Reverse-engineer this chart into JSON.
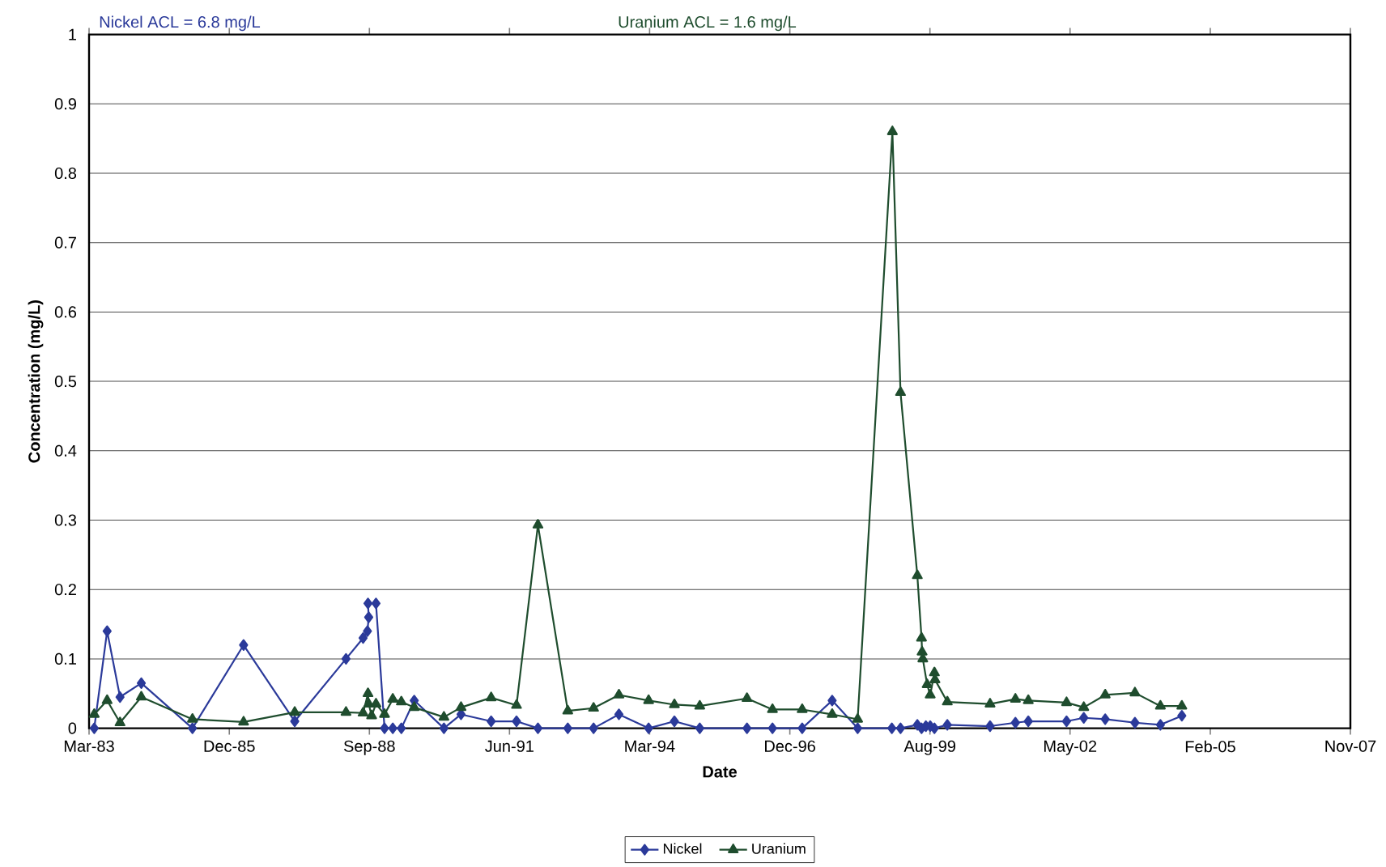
{
  "chart_data": {
    "type": "line",
    "annotations": [
      "Nickel ACL = 6.8 mg/L",
      "Uranium ACL = 1.6 mg/L"
    ],
    "xlabel": "Date",
    "ylabel": "Concentration (mg/L)",
    "xlim": [
      "1983-03-25",
      "2007-11-17"
    ],
    "xticks": [
      {
        "value": "1983-03-25",
        "label": "Mar-83"
      },
      {
        "value": "1985-12-20",
        "label": "Dec-85"
      },
      {
        "value": "1988-09-15",
        "label": "Sep-88"
      },
      {
        "value": "1991-06-12",
        "label": "Jun-91"
      },
      {
        "value": "1994-03-08",
        "label": "Mar-94"
      },
      {
        "value": "1996-12-03",
        "label": "Dec-96"
      },
      {
        "value": "1999-08-30",
        "label": "Aug-99"
      },
      {
        "value": "2002-05-26",
        "label": "May-02"
      },
      {
        "value": "2005-02-20",
        "label": "Feb-05"
      },
      {
        "value": "2007-11-17",
        "label": "Nov-07"
      }
    ],
    "ylim": [
      0,
      1
    ],
    "yticks": [
      0,
      0.1,
      0.2,
      0.3,
      0.4,
      0.5,
      0.6,
      0.7,
      0.8,
      0.9,
      1
    ],
    "grid": "y",
    "legend": "bottom",
    "series": [
      {
        "name": "Nickel",
        "color": "#2b3a9a",
        "marker": "diamond",
        "x": [
          "1983-05-01",
          "1983-08-01",
          "1983-11-01",
          "1984-04-01",
          "1985-04-01",
          "1986-04-01",
          "1987-04-01",
          "1988-04-01",
          "1988-08-01",
          "1988-09-01",
          "1988-09-10",
          "1988-09-05",
          "1988-11-01",
          "1989-01-01",
          "1989-03-01",
          "1989-05-01",
          "1989-08-01",
          "1990-03-01",
          "1990-07-01",
          "1991-02-01",
          "1991-08-01",
          "1992-01-01",
          "1992-08-01",
          "1993-02-01",
          "1993-08-01",
          "1994-03-01",
          "1994-09-01",
          "1995-03-01",
          "1996-02-01",
          "1996-08-01",
          "1997-03-01",
          "1997-10-01",
          "1998-04-01",
          "1998-12-01",
          "1999-02-01",
          "1999-06-01",
          "1999-07-01",
          "1999-08-01",
          "1999-09-01",
          "1999-10-01",
          "2000-01-01",
          "2000-11-01",
          "2001-05-01",
          "2001-08-01",
          "2002-05-01",
          "2002-09-01",
          "2003-02-01",
          "2003-09-01",
          "2004-03-01",
          "2004-08-01"
        ],
        "values": [
          0,
          0.14,
          0.045,
          0.065,
          0,
          0.12,
          0.01,
          0.1,
          0.13,
          0.14,
          0.16,
          0.18,
          0.18,
          0,
          0,
          0,
          0.04,
          0,
          0.02,
          0.01,
          0.01,
          0,
          0,
          0,
          0.02,
          0,
          0.01,
          0,
          0,
          0,
          0,
          0.04,
          0,
          0,
          0,
          0.005,
          0,
          0.003,
          0.003,
          0,
          0.005,
          0.003,
          0.008,
          0.01,
          0.01,
          0.015,
          0.013,
          0.008,
          0.005,
          0.018
        ]
      },
      {
        "name": "Uranium",
        "color": "#1f4d2e",
        "marker": "triangle",
        "x": [
          "1983-05-01",
          "1983-08-01",
          "1983-11-01",
          "1984-04-01",
          "1985-04-01",
          "1986-04-01",
          "1987-04-01",
          "1988-04-01",
          "1988-08-01",
          "1988-09-05",
          "1988-09-10",
          "1988-10-01",
          "1988-11-01",
          "1989-01-01",
          "1989-03-01",
          "1989-05-01",
          "1989-08-01",
          "1990-03-01",
          "1990-07-01",
          "1991-02-01",
          "1991-08-01",
          "1992-01-01",
          "1992-08-01",
          "1993-02-01",
          "1993-08-01",
          "1994-03-01",
          "1994-09-01",
          "1995-03-01",
          "1996-02-01",
          "1996-08-01",
          "1997-03-01",
          "1997-10-01",
          "1998-04-01",
          "1998-12-05",
          "1999-02-01",
          "1999-06-01",
          "1999-07-01",
          "1999-07-05",
          "1999-07-10",
          "1999-08-10",
          "1999-09-01",
          "1999-10-01",
          "1999-10-05",
          "2000-01-01",
          "2000-11-01",
          "2001-05-01",
          "2001-08-01",
          "2002-05-01",
          "2002-09-01",
          "2003-02-01",
          "2003-09-01",
          "2004-03-01",
          "2004-08-01"
        ],
        "values": [
          0.02,
          0.04,
          0.008,
          0.045,
          0.013,
          0.009,
          0.023,
          0.023,
          0.022,
          0.05,
          0.035,
          0.018,
          0.035,
          0.02,
          0.042,
          0.038,
          0.03,
          0.016,
          0.03,
          0.044,
          0.033,
          0.293,
          0.025,
          0.029,
          0.048,
          0.04,
          0.034,
          0.032,
          0.043,
          0.027,
          0.027,
          0.02,
          0.013,
          0.86,
          0.484,
          0.22,
          0.13,
          0.11,
          0.1,
          0.063,
          0.048,
          0.08,
          0.07,
          0.038,
          0.035,
          0.042,
          0.04,
          0.037,
          0.03,
          0.048,
          0.051,
          0.032,
          0.032
        ]
      }
    ]
  }
}
